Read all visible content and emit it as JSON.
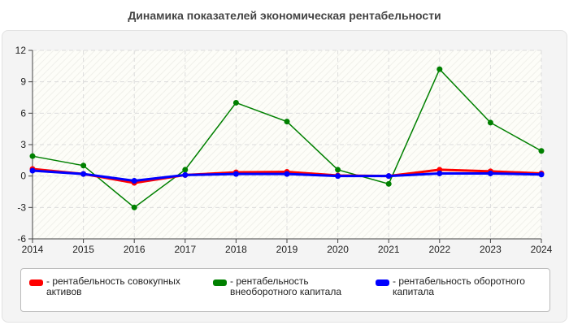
{
  "chart_data": {
    "type": "line",
    "title": "Динамика показателей экономическая рентабельности",
    "x": [
      "2014",
      "2015",
      "2016",
      "2017",
      "2018",
      "2019",
      "2020",
      "2021",
      "2022",
      "2023",
      "2024"
    ],
    "ylim": [
      -6,
      12
    ],
    "yticks": [
      "12",
      "9",
      "6",
      "3",
      "0",
      "-3",
      "-6"
    ],
    "grid": true,
    "legend": "bottom",
    "series": [
      {
        "name": "- рентабельность совокупных активов",
        "color": "#ff0000",
        "values": [
          0.67,
          0.2,
          -0.65,
          0.1,
          0.35,
          0.4,
          0.05,
          0.0,
          0.6,
          0.45,
          0.25
        ]
      },
      {
        "name": "- рентабельность внеоборотного капитала",
        "color": "#008000",
        "values": [
          1.9,
          1.0,
          -3.0,
          0.6,
          7.0,
          5.2,
          0.6,
          -0.75,
          10.2,
          5.1,
          2.4
        ]
      },
      {
        "name": "- рентабельность оборотного капитала",
        "color": "#0000ff",
        "values": [
          0.52,
          0.2,
          -0.45,
          0.1,
          0.2,
          0.2,
          0.0,
          0.0,
          0.25,
          0.25,
          0.15
        ]
      }
    ]
  }
}
